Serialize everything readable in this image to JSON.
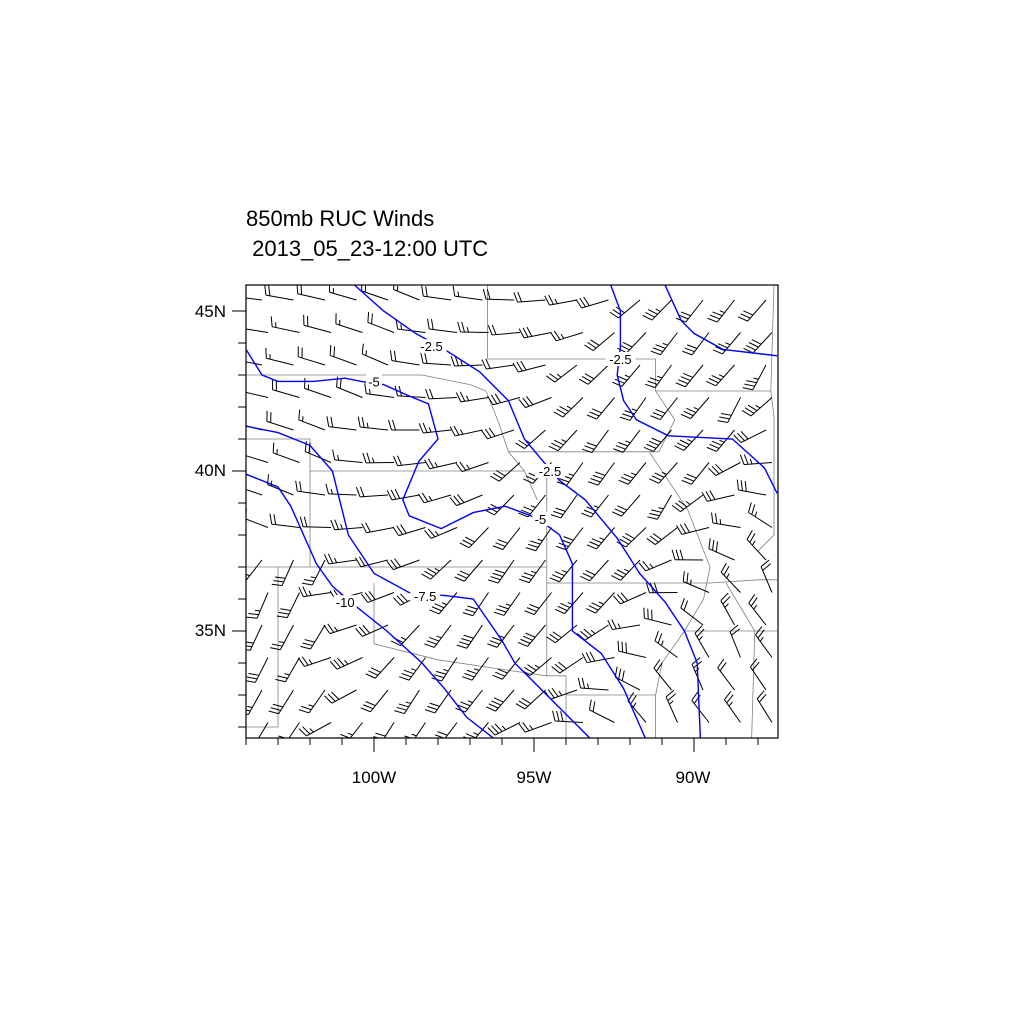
{
  "title": "850mb RUC Winds",
  "subtitle": " 2013_05_23-12:00 UTC",
  "map": {
    "lon_range": [
      -104,
      -87.4
    ],
    "lat_range": [
      31.6,
      45.8
    ],
    "lon_ticks": [
      {
        "value": -100,
        "label": "100W"
      },
      {
        "value": -95,
        "label": "95W"
      },
      {
        "value": -90,
        "label": "90W"
      }
    ],
    "lat_ticks": [
      {
        "value": 45,
        "label": "45N"
      },
      {
        "value": 40,
        "label": "40N"
      },
      {
        "value": 35,
        "label": "35N"
      }
    ],
    "contour_color": "#0000ff",
    "boundary_color": "#808080",
    "barb_color": "#000000"
  },
  "contours": [
    {
      "label": "-2.5",
      "label_at": [
        [
          -98.2,
          43.9
        ],
        [
          -94.5,
          40.0
        ]
      ],
      "path": [
        [
          -100.6,
          45.8
        ],
        [
          -99.7,
          45.0
        ],
        [
          -98.7,
          44.3
        ],
        [
          -97.8,
          43.8
        ],
        [
          -96.7,
          43.1
        ],
        [
          -96.1,
          42.5
        ],
        [
          -95.8,
          42.2
        ],
        [
          -95.3,
          41.0
        ],
        [
          -94.8,
          40.4
        ],
        [
          -94.2,
          39.7
        ],
        [
          -93.4,
          39.1
        ],
        [
          -92.4,
          37.9
        ],
        [
          -91.7,
          36.8
        ],
        [
          -90.9,
          35.9
        ],
        [
          -90.3,
          35.0
        ],
        [
          -89.9,
          34.0
        ],
        [
          -89.8,
          31.6
        ]
      ]
    },
    {
      "label": "-2.5",
      "label_at": [
        [
          -92.3,
          43.5
        ]
      ],
      "path": [
        [
          -92.6,
          45.8
        ],
        [
          -92.3,
          45.0
        ],
        [
          -92.3,
          43.9
        ],
        [
          -92.4,
          43.0
        ],
        [
          -92.2,
          42.2
        ],
        [
          -91.8,
          41.6
        ],
        [
          -90.8,
          41.1
        ],
        [
          -88.8,
          41.0
        ],
        [
          -87.8,
          40.1
        ],
        [
          -87.4,
          39.3
        ]
      ]
    },
    {
      "label": "",
      "label_at": [],
      "path": [
        [
          -90.9,
          45.8
        ],
        [
          -90.4,
          44.7
        ],
        [
          -90.0,
          44.3
        ],
        [
          -89.1,
          43.8
        ],
        [
          -87.4,
          43.6
        ]
      ]
    },
    {
      "label": "-5",
      "label_at": [
        [
          -100.0,
          42.8
        ],
        [
          -94.8,
          38.5
        ]
      ],
      "path": [
        [
          -104,
          43.8
        ],
        [
          -103.5,
          43.0
        ],
        [
          -103,
          42.8
        ],
        [
          -101.9,
          42.8
        ],
        [
          -100.9,
          42.9
        ],
        [
          -100.4,
          42.8
        ],
        [
          -99.7,
          42.7
        ],
        [
          -98.8,
          42.3
        ],
        [
          -98.3,
          42.1
        ],
        [
          -98.0,
          41.0
        ],
        [
          -98.6,
          40.3
        ],
        [
          -99.1,
          39.1
        ],
        [
          -98.9,
          38.6
        ],
        [
          -97.9,
          38.2
        ],
        [
          -96.9,
          38.7
        ],
        [
          -95.9,
          38.9
        ],
        [
          -95.1,
          38.6
        ],
        [
          -94.6,
          38.3
        ],
        [
          -94.2,
          38.0
        ],
        [
          -93.8,
          37.1
        ],
        [
          -93.8,
          35.0
        ],
        [
          -92.9,
          34.3
        ],
        [
          -92.2,
          33.2
        ],
        [
          -91.5,
          31.6
        ]
      ]
    },
    {
      "label": "-7.5",
      "label_at": [
        [
          -98.4,
          36.1
        ]
      ],
      "path": [
        [
          -104,
          41.4
        ],
        [
          -103,
          41.2
        ],
        [
          -102,
          40.8
        ],
        [
          -101.3,
          40.0
        ],
        [
          -100.8,
          38.0
        ],
        [
          -100,
          36.8
        ],
        [
          -98.9,
          36.2
        ],
        [
          -97.7,
          36.1
        ],
        [
          -96.9,
          36.0
        ],
        [
          -96,
          34.7
        ],
        [
          -95.6,
          34.0
        ],
        [
          -94.9,
          33.3
        ],
        [
          -94,
          32.4
        ],
        [
          -93.2,
          31.6
        ]
      ]
    },
    {
      "label": "-10",
      "label_at": [
        [
          -100.9,
          35.9
        ]
      ],
      "path": [
        [
          -104,
          39.9
        ],
        [
          -103,
          39.5
        ],
        [
          -102.6,
          38.9
        ],
        [
          -101.8,
          37.1
        ],
        [
          -101.3,
          36.4
        ],
        [
          -100.6,
          35.8
        ],
        [
          -99.6,
          35.0
        ],
        [
          -98.5,
          34.0
        ],
        [
          -97.8,
          33.2
        ],
        [
          -97.1,
          32.3
        ],
        [
          -96.2,
          31.6
        ]
      ]
    }
  ]
}
